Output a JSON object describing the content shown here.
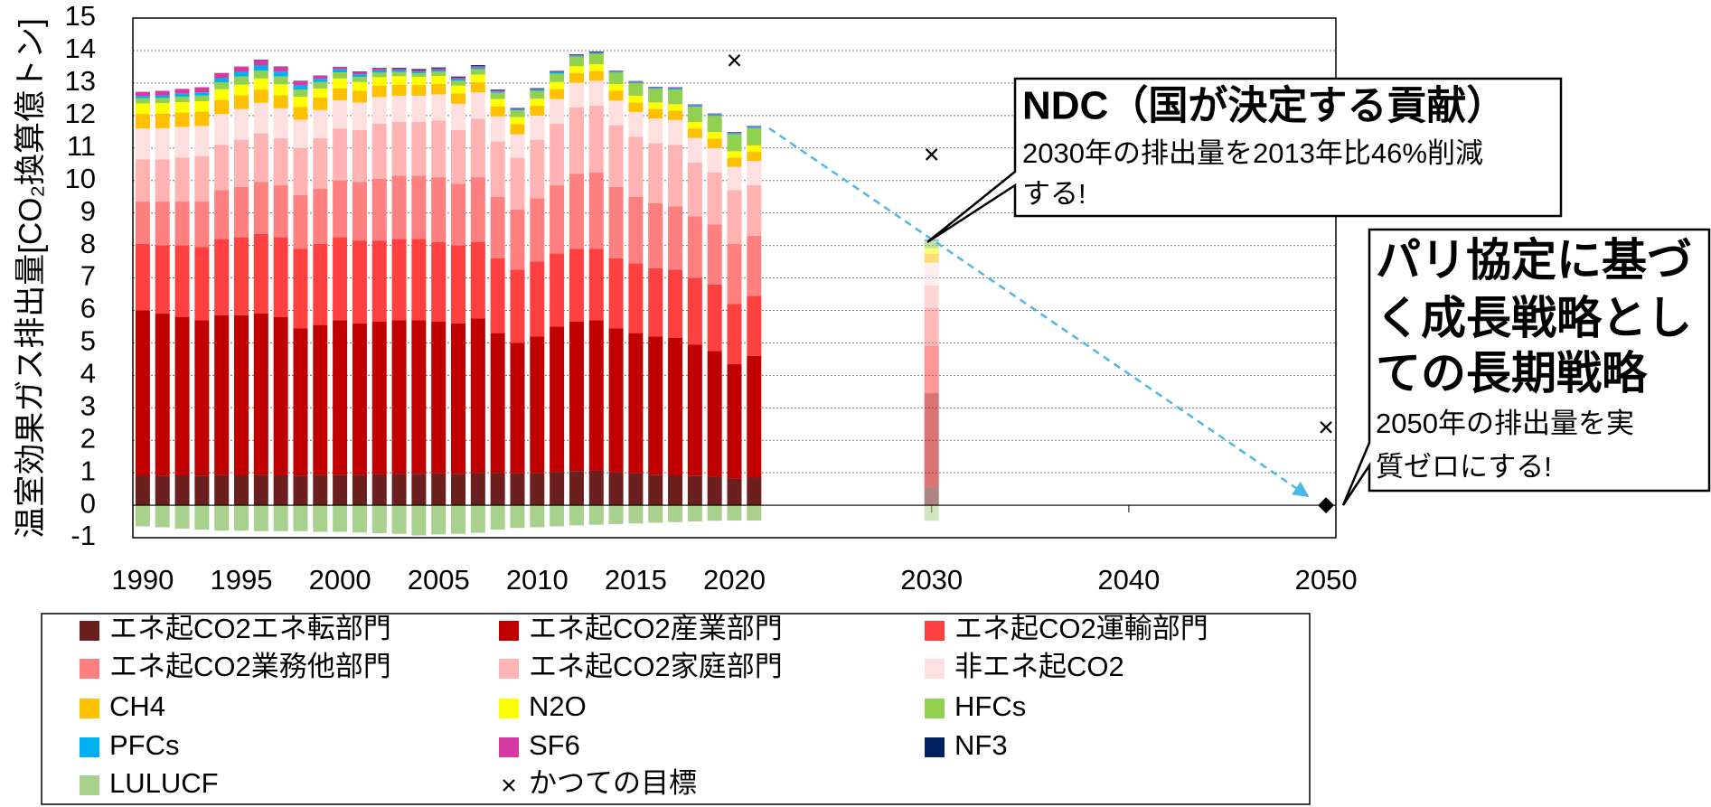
{
  "chart_data": {
    "type": "stacked_bar",
    "y_label": "温室効果ガス排出量[CO₂換算億トン]",
    "x": [
      1990,
      1991,
      1992,
      1993,
      1994,
      1995,
      1996,
      1997,
      1998,
      1999,
      2000,
      2001,
      2002,
      2003,
      2004,
      2005,
      2006,
      2007,
      2008,
      2009,
      2010,
      2011,
      2012,
      2013,
      2014,
      2015,
      2016,
      2017,
      2018,
      2019,
      2020,
      2021,
      2030
    ],
    "xlim": [
      1989.5,
      2050.5
    ],
    "xticks": [
      1990,
      1995,
      2000,
      2005,
      2010,
      2015,
      2020,
      2030,
      2040,
      2050
    ],
    "ylim": [
      -1,
      15
    ],
    "yticks": [
      -1,
      0,
      1,
      2,
      3,
      4,
      5,
      6,
      7,
      8,
      9,
      10,
      11,
      12,
      13,
      14,
      15
    ],
    "grid": true,
    "series": [
      {
        "name": "エネ起CO2エネ転部門",
        "color": "#6b1f1f",
        "values": [
          0.92,
          0.91,
          0.92,
          0.91,
          0.93,
          0.92,
          0.93,
          0.92,
          0.91,
          0.93,
          0.94,
          0.93,
          0.95,
          0.96,
          0.97,
          0.98,
          0.97,
          1.0,
          1.0,
          0.98,
          1.0,
          1.02,
          1.05,
          1.06,
          1.02,
          0.98,
          0.94,
          0.92,
          0.9,
          0.88,
          0.82,
          0.85,
          0.56
        ]
      },
      {
        "name": "エネ起CO2産業部門",
        "color": "#c00000",
        "values": [
          5.08,
          4.99,
          4.88,
          4.79,
          4.92,
          4.93,
          4.97,
          4.88,
          4.54,
          4.62,
          4.76,
          4.67,
          4.7,
          4.74,
          4.73,
          4.67,
          4.63,
          4.75,
          4.3,
          4.02,
          4.2,
          4.48,
          4.6,
          4.64,
          4.43,
          4.32,
          4.26,
          4.23,
          4.05,
          3.87,
          3.53,
          3.75,
          2.89
        ]
      },
      {
        "name": "エネ起CO2運輸部門",
        "color": "#ff4040",
        "values": [
          2.05,
          2.1,
          2.2,
          2.25,
          2.35,
          2.4,
          2.45,
          2.45,
          2.45,
          2.5,
          2.55,
          2.55,
          2.5,
          2.5,
          2.5,
          2.45,
          2.4,
          2.35,
          2.3,
          2.25,
          2.3,
          2.25,
          2.25,
          2.2,
          2.15,
          2.15,
          2.1,
          2.1,
          2.05,
          2.05,
          1.85,
          1.85,
          1.46
        ]
      },
      {
        "name": "エネ起CO2業務他部門",
        "color": "#ff8080",
        "values": [
          1.3,
          1.35,
          1.35,
          1.4,
          1.5,
          1.55,
          1.6,
          1.6,
          1.65,
          1.7,
          1.75,
          1.8,
          1.9,
          1.95,
          1.95,
          2.0,
          1.9,
          2.0,
          1.9,
          1.85,
          1.95,
          2.1,
          2.3,
          2.35,
          2.2,
          2.05,
          2.0,
          1.95,
          1.9,
          1.85,
          1.85,
          1.85,
          1.16
        ]
      },
      {
        "name": "エネ起CO2家庭部門",
        "color": "#ffb3b3",
        "values": [
          1.3,
          1.3,
          1.35,
          1.4,
          1.4,
          1.45,
          1.5,
          1.45,
          1.45,
          1.55,
          1.6,
          1.6,
          1.7,
          1.65,
          1.65,
          1.75,
          1.65,
          1.8,
          1.7,
          1.6,
          1.8,
          1.9,
          2.05,
          2.05,
          1.9,
          1.85,
          1.85,
          1.9,
          1.65,
          1.6,
          1.65,
          1.55,
          0.7
        ]
      },
      {
        "name": "非エネ起CO2",
        "color": "#ffe0e0",
        "values": [
          0.95,
          0.96,
          0.95,
          0.93,
          0.95,
          0.95,
          0.94,
          0.92,
          0.87,
          0.87,
          0.87,
          0.85,
          0.82,
          0.81,
          0.81,
          0.8,
          0.81,
          0.81,
          0.77,
          0.72,
          0.75,
          0.76,
          0.76,
          0.77,
          0.76,
          0.76,
          0.76,
          0.76,
          0.76,
          0.75,
          0.72,
          0.75,
          0.7
        ]
      },
      {
        "name": "CH4",
        "color": "#ffc000",
        "values": [
          0.45,
          0.45,
          0.44,
          0.44,
          0.43,
          0.42,
          0.41,
          0.4,
          0.39,
          0.38,
          0.37,
          0.36,
          0.35,
          0.34,
          0.33,
          0.32,
          0.32,
          0.31,
          0.31,
          0.31,
          0.3,
          0.3,
          0.3,
          0.3,
          0.3,
          0.29,
          0.29,
          0.29,
          0.29,
          0.29,
          0.28,
          0.28,
          0.27
        ]
      },
      {
        "name": "N2O",
        "color": "#ffff00",
        "values": [
          0.32,
          0.32,
          0.32,
          0.32,
          0.33,
          0.33,
          0.34,
          0.34,
          0.32,
          0.28,
          0.3,
          0.27,
          0.26,
          0.26,
          0.25,
          0.25,
          0.24,
          0.24,
          0.23,
          0.22,
          0.22,
          0.22,
          0.21,
          0.21,
          0.21,
          0.21,
          0.2,
          0.2,
          0.2,
          0.2,
          0.2,
          0.2,
          0.17
        ]
      },
      {
        "name": "HFCs",
        "color": "#92d050",
        "values": [
          0.16,
          0.16,
          0.17,
          0.17,
          0.21,
          0.25,
          0.24,
          0.24,
          0.22,
          0.2,
          0.19,
          0.16,
          0.14,
          0.13,
          0.11,
          0.13,
          0.15,
          0.17,
          0.19,
          0.21,
          0.24,
          0.26,
          0.29,
          0.32,
          0.35,
          0.39,
          0.42,
          0.45,
          0.47,
          0.5,
          0.52,
          0.53,
          0.22
        ]
      },
      {
        "name": "PFCs",
        "color": "#00b0f0",
        "values": [
          0.07,
          0.08,
          0.09,
          0.1,
          0.13,
          0.14,
          0.16,
          0.15,
          0.13,
          0.1,
          0.09,
          0.08,
          0.07,
          0.06,
          0.05,
          0.05,
          0.05,
          0.05,
          0.04,
          0.03,
          0.04,
          0.04,
          0.03,
          0.03,
          0.03,
          0.03,
          0.03,
          0.04,
          0.04,
          0.04,
          0.04,
          0.04,
          0.03
        ]
      },
      {
        "name": "SF6",
        "color": "#d63aa0",
        "values": [
          0.13,
          0.14,
          0.15,
          0.16,
          0.16,
          0.17,
          0.17,
          0.15,
          0.13,
          0.09,
          0.07,
          0.06,
          0.05,
          0.05,
          0.05,
          0.05,
          0.05,
          0.04,
          0.04,
          0.02,
          0.02,
          0.02,
          0.02,
          0.02,
          0.02,
          0.02,
          0.02,
          0.02,
          0.02,
          0.02,
          0.02,
          0.02,
          0.02
        ]
      },
      {
        "name": "NF3",
        "color": "#002060",
        "values": [
          0,
          0,
          0,
          0,
          0,
          0,
          0.01,
          0.01,
          0.01,
          0.01,
          0.01,
          0.02,
          0.02,
          0.02,
          0.03,
          0.03,
          0.03,
          0.03,
          0.02,
          0.02,
          0.02,
          0.02,
          0.02,
          0.02,
          0.01,
          0.01,
          0.01,
          0.01,
          0.01,
          0.01,
          0.01,
          0.01,
          0.01
        ]
      },
      {
        "name": "LULUCF",
        "color": "#a9d18e",
        "values": [
          -0.65,
          -0.68,
          -0.72,
          -0.75,
          -0.78,
          -0.78,
          -0.8,
          -0.8,
          -0.8,
          -0.82,
          -0.82,
          -0.84,
          -0.86,
          -0.88,
          -0.93,
          -0.9,
          -0.88,
          -0.85,
          -0.75,
          -0.7,
          -0.68,
          -0.65,
          -0.62,
          -0.6,
          -0.58,
          -0.56,
          -0.54,
          -0.52,
          -0.5,
          -0.48,
          -0.47,
          -0.47,
          -0.48
        ]
      }
    ],
    "former_targets": {
      "name": "かつての目標",
      "x": [
        2020,
        2030,
        2050
      ],
      "values": [
        13.7,
        10.8,
        2.4
      ]
    },
    "goal_2050": {
      "x": 2050,
      "value": 0
    },
    "annotations": [
      {
        "title": "NDC（国が決定する貢献）",
        "lines": [
          "2030年の排出量を2013年比46%削減",
          "する!"
        ]
      },
      {
        "title_lines": [
          "パリ協定に基づ",
          "く成長戦略とし",
          "ての長期戦略"
        ],
        "lines": [
          "2050年の排出量を実",
          "質ゼロにする!"
        ]
      }
    ]
  }
}
